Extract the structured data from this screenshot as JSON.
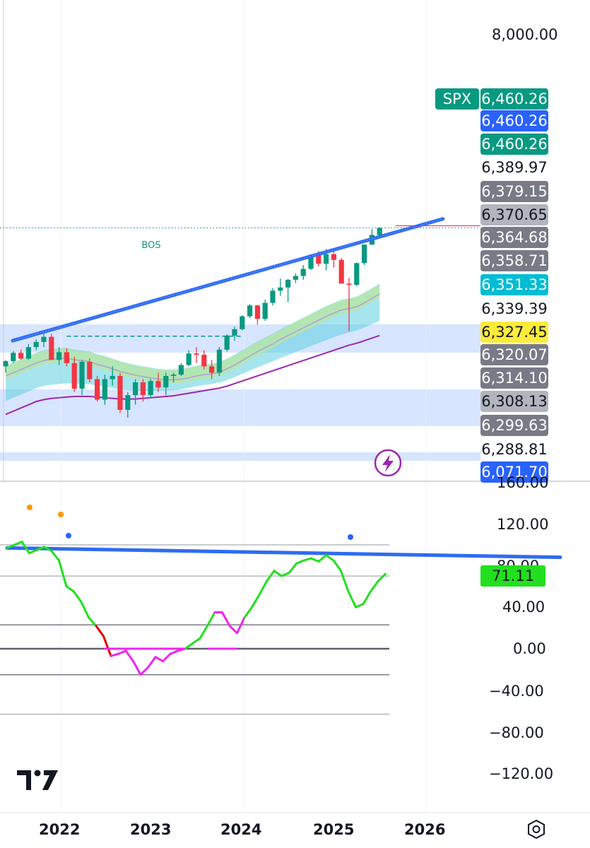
{
  "chart_data": [
    {
      "type": "candlestick",
      "symbol": "SPX",
      "interval": "monthly",
      "x_labels": [
        "2022",
        "2023",
        "2024",
        "2025",
        "2026"
      ],
      "y_axis_labels": [
        "8,000.00"
      ],
      "annotation": "BOS",
      "price_tags": [
        {
          "text": "6,460.26",
          "color": "#089981"
        },
        {
          "text": "6,460.26",
          "color": "#2962ff"
        },
        {
          "text": "6,460.26",
          "color": "#089981"
        },
        {
          "text": "6,389.97",
          "color": ""
        },
        {
          "text": "6,379.15",
          "color": "#787b86"
        },
        {
          "text": "6,370.65",
          "color": "#b2b5be"
        },
        {
          "text": "6,364.68",
          "color": "#787b86"
        },
        {
          "text": "6,358.71",
          "color": "#787b86"
        },
        {
          "text": "6,351.33",
          "color": "#00bcd4"
        },
        {
          "text": "6,339.39",
          "color": ""
        },
        {
          "text": "6,327.45",
          "color": "#ffeb3b"
        },
        {
          "text": "6,320.07",
          "color": "#787b86"
        },
        {
          "text": "6,314.10",
          "color": "#787b86"
        },
        {
          "text": "6,308.13",
          "color": "#b2b5be"
        },
        {
          "text": "6,299.63",
          "color": "#787b86"
        },
        {
          "text": "6,288.81",
          "color": ""
        },
        {
          "text": "6,071.70",
          "color": "#2962ff"
        }
      ],
      "candles_ohlc": [
        [
          4300,
          4400,
          4200,
          4380
        ],
        [
          4380,
          4540,
          4350,
          4510
        ],
        [
          4510,
          4560,
          4400,
          4420
        ],
        [
          4420,
          4650,
          4400,
          4600
        ],
        [
          4600,
          4720,
          4550,
          4680
        ],
        [
          4680,
          4810,
          4600,
          4760
        ],
        [
          4760,
          4810,
          4500,
          4400
        ],
        [
          4400,
          4600,
          4320,
          4520
        ],
        [
          4520,
          4580,
          4300,
          4350
        ],
        [
          4350,
          4450,
          3900,
          3950
        ],
        [
          3950,
          4400,
          3850,
          4370
        ],
        [
          4370,
          4420,
          4050,
          4100
        ],
        [
          4100,
          4150,
          3750,
          3780
        ],
        [
          3780,
          4170,
          3700,
          4100
        ],
        [
          4100,
          4300,
          4000,
          4150
        ],
        [
          4150,
          4200,
          3570,
          3620
        ],
        [
          3620,
          3900,
          3500,
          3850
        ],
        [
          3850,
          4100,
          3700,
          4050
        ],
        [
          4050,
          4100,
          3750,
          3850
        ],
        [
          3850,
          4100,
          3800,
          4070
        ],
        [
          4070,
          4200,
          3900,
          3970
        ],
        [
          3970,
          4200,
          3850,
          4150
        ],
        [
          4150,
          4200,
          4050,
          4170
        ],
        [
          4170,
          4350,
          4150,
          4320
        ],
        [
          4320,
          4550,
          4300,
          4500
        ],
        [
          4500,
          4600,
          4350,
          4480
        ],
        [
          4480,
          4550,
          4250,
          4300
        ],
        [
          4300,
          4400,
          4100,
          4200
        ],
        [
          4200,
          4600,
          4150,
          4560
        ],
        [
          4560,
          4800,
          4530,
          4780
        ],
        [
          4780,
          4920,
          4700,
          4880
        ],
        [
          4880,
          5100,
          4860,
          5080
        ],
        [
          5080,
          5270,
          5050,
          5250
        ],
        [
          5250,
          5260,
          4950,
          5040
        ],
        [
          5040,
          5340,
          5010,
          5290
        ],
        [
          5290,
          5520,
          5250,
          5480
        ],
        [
          5480,
          5670,
          5400,
          5530
        ],
        [
          5530,
          5660,
          5300,
          5650
        ],
        [
          5650,
          5750,
          5600,
          5710
        ],
        [
          5710,
          5880,
          5650,
          5820
        ],
        [
          5820,
          6050,
          5800,
          6040
        ],
        [
          6040,
          6100,
          5860,
          5900
        ],
        [
          5900,
          6130,
          5800,
          6050
        ],
        [
          6050,
          6140,
          5840,
          5960
        ],
        [
          5960,
          5990,
          5600,
          5590
        ],
        [
          5590,
          5680,
          4850,
          5570
        ],
        [
          5570,
          5920,
          5550,
          5910
        ],
        [
          5910,
          6200,
          5880,
          6200
        ],
        [
          6200,
          6440,
          6190,
          6350
        ],
        [
          6350,
          6470,
          6330,
          6460
        ]
      ],
      "ema_fast": [
        4150,
        4200,
        4250,
        4300,
        4350,
        4390,
        4410,
        4420,
        4430,
        4400,
        4390,
        4370,
        4330,
        4300,
        4260,
        4220,
        4190,
        4160,
        4140,
        4120,
        4100,
        4090,
        4090,
        4100,
        4120,
        4150,
        4170,
        4180,
        4210,
        4260,
        4320,
        4390,
        4460,
        4530,
        4590,
        4650,
        4720,
        4780,
        4840,
        4900,
        4960,
        5020,
        5080,
        5130,
        5180,
        5200,
        5230,
        5290,
        5360,
        5430
      ],
      "ma_slow": [
        3550,
        3600,
        3650,
        3700,
        3750,
        3780,
        3800,
        3810,
        3820,
        3830,
        3830,
        3830,
        3820,
        3810,
        3800,
        3790,
        3790,
        3790,
        3800,
        3810,
        3820,
        3830,
        3840,
        3860,
        3880,
        3900,
        3920,
        3940,
        3960,
        3990,
        4030,
        4070,
        4110,
        4150,
        4190,
        4230,
        4270,
        4310,
        4350,
        4390,
        4430,
        4470,
        4510,
        4550,
        4590,
        4630,
        4660,
        4700,
        4740,
        4780
      ],
      "bos_level": 4770,
      "trendline": {
        "from": [
          0,
          4700
        ],
        "to": [
          56,
          6600
        ]
      }
    },
    {
      "type": "line",
      "name": "oscillator",
      "y_axis_labels": [
        "160.00",
        "120.00",
        "80.00",
        "40.00",
        "0.00",
        "−40.00",
        "−80.00",
        "−120.00"
      ],
      "current_value_label": "71.11",
      "values": [
        97,
        100,
        103,
        92,
        95,
        98,
        94,
        85,
        60,
        55,
        45,
        30,
        22,
        12,
        -7,
        -5,
        -2,
        -12,
        -25,
        -18,
        -8,
        -12,
        -5,
        -2,
        0,
        5,
        10,
        22,
        35,
        35,
        22,
        15,
        30,
        40,
        52,
        65,
        75,
        70,
        73,
        82,
        85,
        87,
        84,
        90,
        85,
        75,
        55,
        40,
        43,
        55,
        65,
        72
      ],
      "trendline": {
        "from": [
          0,
          97
        ],
        "to": [
          74,
          88
        ]
      }
    }
  ],
  "watermark": "TV"
}
